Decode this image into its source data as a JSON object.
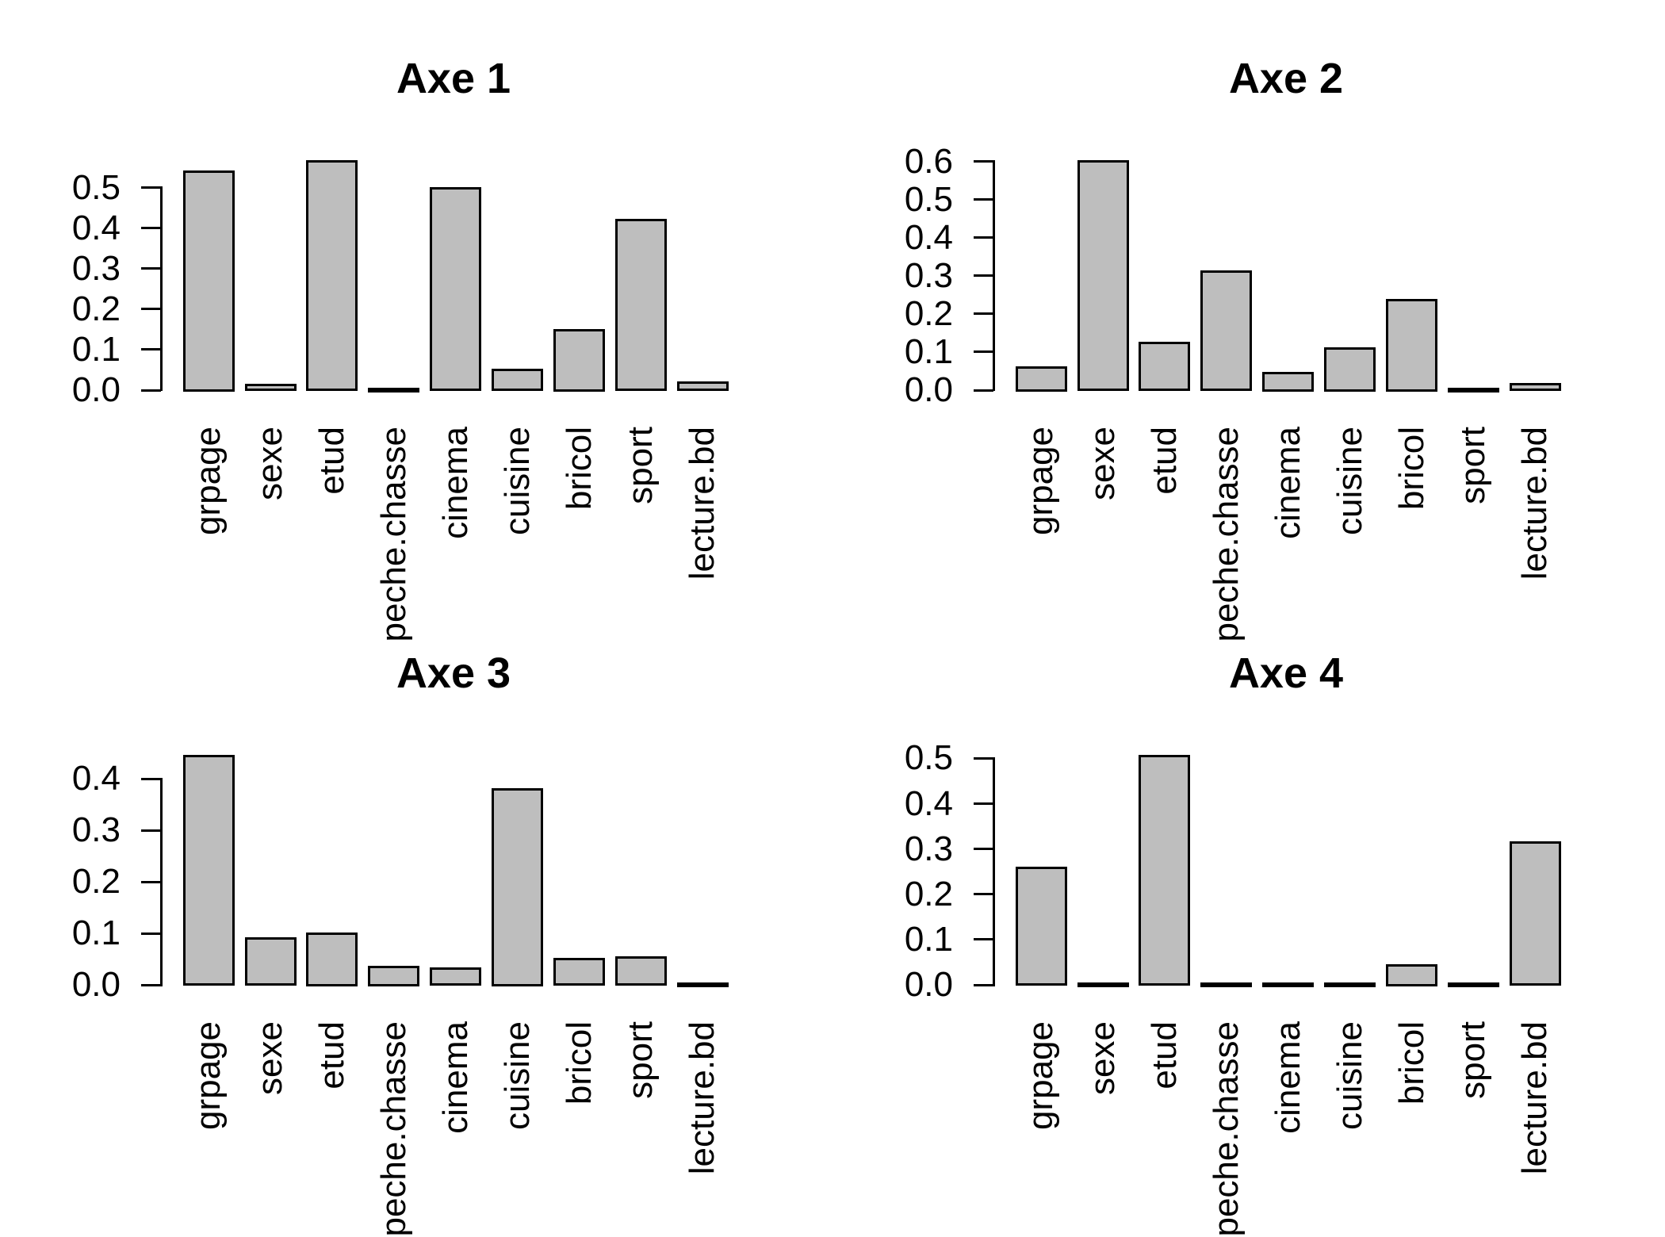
{
  "figure": {
    "background": "#FFFFFF",
    "text_color": "#000000",
    "bar_fill": "#BEBEBE",
    "bar_border": "#000000",
    "layout": "2x2 grid of barplots"
  },
  "chart_data": [
    {
      "type": "bar",
      "title": "Axe 1",
      "categories": [
        "grpage",
        "sexe",
        "etud",
        "peche.chasse",
        "cinema",
        "cuisine",
        "bricol",
        "sport",
        "lecture.bd"
      ],
      "values": [
        0.54,
        0.012,
        0.565,
        0.002,
        0.498,
        0.049,
        0.148,
        0.42,
        0.018
      ],
      "xlabel": "",
      "ylabel": "",
      "ylim": [
        0,
        0.5
      ],
      "ytick_step": 0.1,
      "ytick_labels": [
        "0.0",
        "0.1",
        "0.2",
        "0.3",
        "0.4",
        "0.5"
      ],
      "grid": false,
      "legend": "none"
    },
    {
      "type": "bar",
      "title": "Axe 2",
      "categories": [
        "grpage",
        "sexe",
        "etud",
        "peche.chasse",
        "cinema",
        "cuisine",
        "bricol",
        "sport",
        "lecture.bd"
      ],
      "values": [
        0.06,
        0.6,
        0.123,
        0.31,
        0.045,
        0.11,
        0.237,
        0.002,
        0.015
      ],
      "xlabel": "",
      "ylabel": "",
      "ylim": [
        0,
        0.6
      ],
      "ytick_step": 0.1,
      "ytick_labels": [
        "0.0",
        "0.1",
        "0.2",
        "0.3",
        "0.4",
        "0.5",
        "0.6"
      ],
      "grid": false,
      "legend": "none"
    },
    {
      "type": "bar",
      "title": "Axe 3",
      "categories": [
        "grpage",
        "sexe",
        "etud",
        "peche.chasse",
        "cinema",
        "cuisine",
        "bricol",
        "sport",
        "lecture.bd"
      ],
      "values": [
        0.444,
        0.09,
        0.1,
        0.035,
        0.031,
        0.38,
        0.05,
        0.053,
        0.001
      ],
      "xlabel": "",
      "ylabel": "",
      "ylim": [
        0,
        0.4
      ],
      "ytick_step": 0.1,
      "ytick_labels": [
        "0.0",
        "0.1",
        "0.2",
        "0.3",
        "0.4"
      ],
      "grid": false,
      "legend": "none"
    },
    {
      "type": "bar",
      "title": "Axe 4",
      "categories": [
        "grpage",
        "sexe",
        "etud",
        "peche.chasse",
        "cinema",
        "cuisine",
        "bricol",
        "sport",
        "lecture.bd"
      ],
      "values": [
        0.258,
        0.005,
        0.505,
        0.001,
        0.003,
        0.004,
        0.043,
        0.002,
        0.314
      ],
      "xlabel": "",
      "ylabel": "",
      "ylim": [
        0,
        0.5
      ],
      "ytick_step": 0.1,
      "ytick_labels": [
        "0.0",
        "0.1",
        "0.2",
        "0.3",
        "0.4",
        "0.5"
      ],
      "grid": false,
      "legend": "none"
    }
  ]
}
